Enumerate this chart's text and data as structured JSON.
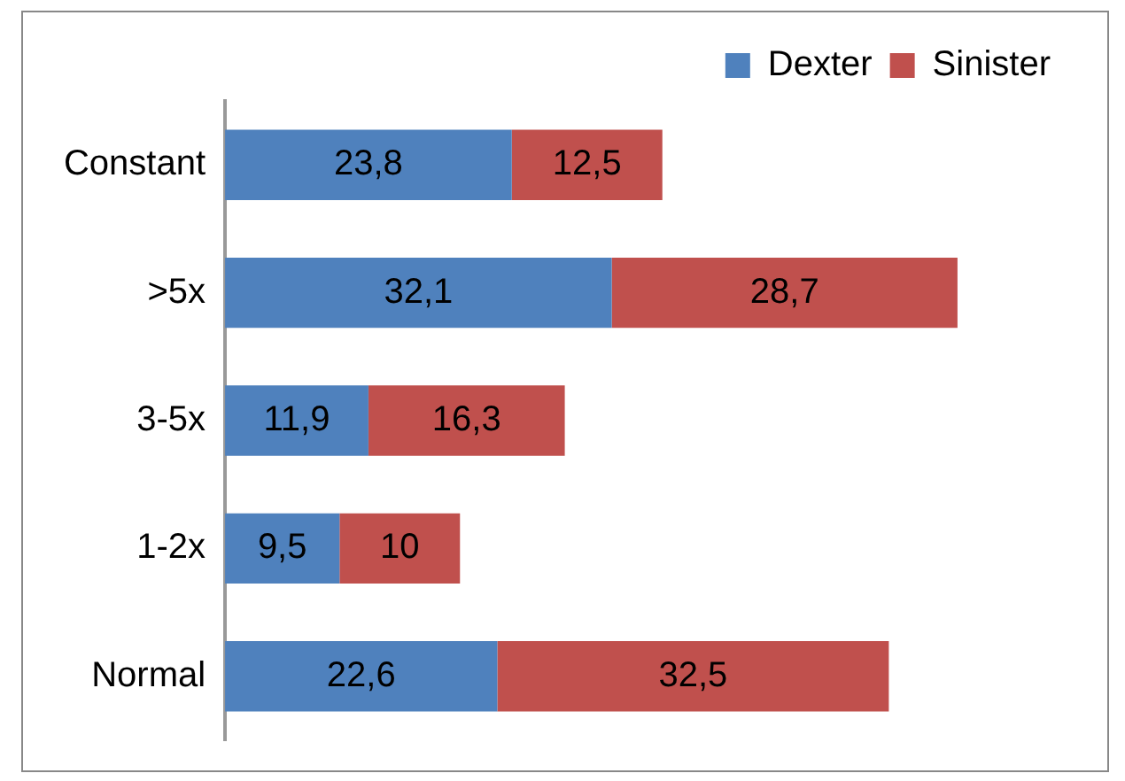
{
  "chart_data": {
    "type": "bar",
    "orientation": "horizontal",
    "stacked": true,
    "legend": "top",
    "tick_labels": "y",
    "categories": [
      "Constant",
      ">5x",
      "3-5x",
      "1-2x",
      "Normal"
    ],
    "series": [
      {
        "name": "Dexter",
        "color": "#4f81bd",
        "values": [
          23.8,
          32.1,
          11.9,
          9.5,
          22.6
        ],
        "value_labels": [
          "23,8",
          "32,1",
          "11,9",
          "9,5",
          "22,6"
        ]
      },
      {
        "name": "Sinister",
        "color": "#c0504d",
        "values": [
          12.5,
          28.7,
          16.3,
          10,
          32.5
        ],
        "value_labels": [
          "12,5",
          "28,7",
          "16,3",
          "10",
          "32,5"
        ]
      }
    ]
  }
}
